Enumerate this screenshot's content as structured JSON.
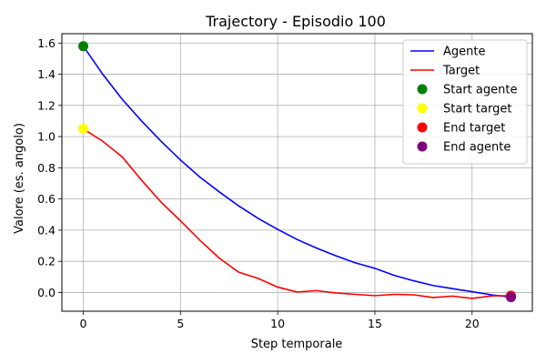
{
  "chart_data": {
    "type": "line",
    "title": "Trajectory - Episodio 100",
    "xlabel": "Step temporale",
    "ylabel": "Valore (es. angolo)",
    "xlim": [
      -1.1,
      23.1
    ],
    "ylim": [
      -0.12,
      1.66
    ],
    "xticks": [
      0,
      5,
      10,
      15,
      20
    ],
    "yticks": [
      0.0,
      0.2,
      0.4,
      0.6,
      0.8,
      1.0,
      1.2,
      1.4,
      1.6
    ],
    "grid": true,
    "legend_position": "top-right",
    "x": [
      0,
      1,
      2,
      3,
      4,
      5,
      6,
      7,
      8,
      9,
      10,
      11,
      12,
      13,
      14,
      15,
      16,
      17,
      18,
      19,
      20,
      21,
      22
    ],
    "series": [
      {
        "name": "Agente",
        "color": "#0000ff",
        "values": [
          1.58,
          1.4,
          1.24,
          1.1,
          0.97,
          0.85,
          0.74,
          0.645,
          0.555,
          0.475,
          0.405,
          0.34,
          0.285,
          0.235,
          0.19,
          0.155,
          0.11,
          0.075,
          0.045,
          0.025,
          0.005,
          -0.015,
          -0.03
        ]
      },
      {
        "name": "Target",
        "color": "#ff0000",
        "values": [
          1.05,
          0.97,
          0.87,
          0.72,
          0.58,
          0.46,
          0.335,
          0.22,
          0.13,
          0.09,
          0.035,
          0.003,
          0.012,
          -0.003,
          -0.012,
          -0.02,
          -0.012,
          -0.015,
          -0.032,
          -0.023,
          -0.038,
          -0.022,
          -0.02
        ]
      }
    ],
    "markers": [
      {
        "name": "Start agente",
        "x": 0,
        "y": 1.58,
        "color": "#008000"
      },
      {
        "name": "Start target",
        "x": 0,
        "y": 1.05,
        "color": "#ffff00"
      },
      {
        "name": "End target",
        "x": 22,
        "y": -0.02,
        "color": "#ff0000"
      },
      {
        "name": "End agente",
        "x": 22,
        "y": -0.03,
        "color": "#800080"
      }
    ]
  }
}
